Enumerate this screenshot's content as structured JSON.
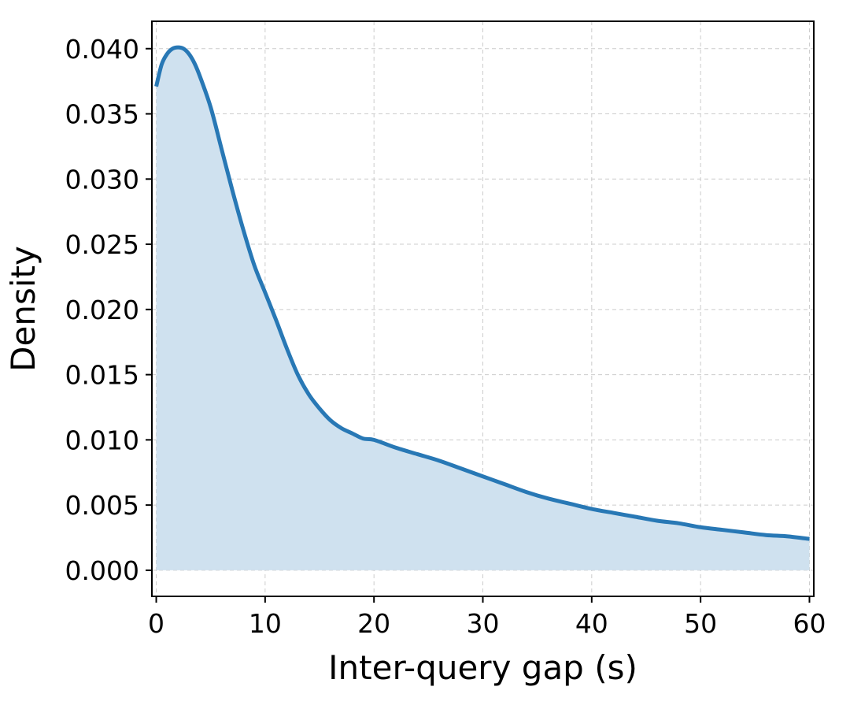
{
  "chart_data": {
    "type": "area",
    "title": "",
    "xlabel": "Inter-query gap (s)",
    "ylabel": "Density",
    "xlim": [
      -0.4,
      60.4
    ],
    "ylim": [
      -0.002,
      0.0421
    ],
    "xticks": [
      0,
      10,
      20,
      30,
      40,
      50,
      60
    ],
    "xtick_labels": [
      "0",
      "10",
      "20",
      "30",
      "40",
      "50",
      "60"
    ],
    "yticks": [
      0.0,
      0.005,
      0.01,
      0.015,
      0.02,
      0.025,
      0.03,
      0.035,
      0.04
    ],
    "ytick_labels": [
      "0.000",
      "0.005",
      "0.010",
      "0.015",
      "0.020",
      "0.025",
      "0.030",
      "0.035",
      "0.040"
    ],
    "grid": true,
    "series": [
      {
        "color": "#2878b5",
        "fill_color": "#cfe1ef",
        "x": [
          0,
          0.5,
          1,
          1.5,
          2,
          2.5,
          3,
          3.5,
          4,
          5,
          6,
          7,
          8,
          9,
          10,
          11,
          12,
          13,
          14,
          15,
          16,
          17,
          18,
          19,
          20,
          22,
          24,
          26,
          28,
          30,
          32,
          34,
          36,
          38,
          40,
          42,
          44,
          46,
          48,
          50,
          52,
          54,
          56,
          58,
          60
        ],
        "y": [
          0.0371,
          0.0388,
          0.0396,
          0.04,
          0.0401,
          0.04,
          0.0396,
          0.0389,
          0.0379,
          0.0355,
          0.0323,
          0.0291,
          0.0261,
          0.0234,
          0.0213,
          0.0192,
          0.017,
          0.015,
          0.0135,
          0.0124,
          0.0115,
          0.0109,
          0.0105,
          0.0101,
          0.01,
          0.0094,
          0.0089,
          0.0084,
          0.0078,
          0.0072,
          0.0066,
          0.006,
          0.0055,
          0.0051,
          0.0047,
          0.0044,
          0.0041,
          0.0038,
          0.0036,
          0.0033,
          0.0031,
          0.0029,
          0.0027,
          0.0026,
          0.0024
        ]
      }
    ]
  }
}
